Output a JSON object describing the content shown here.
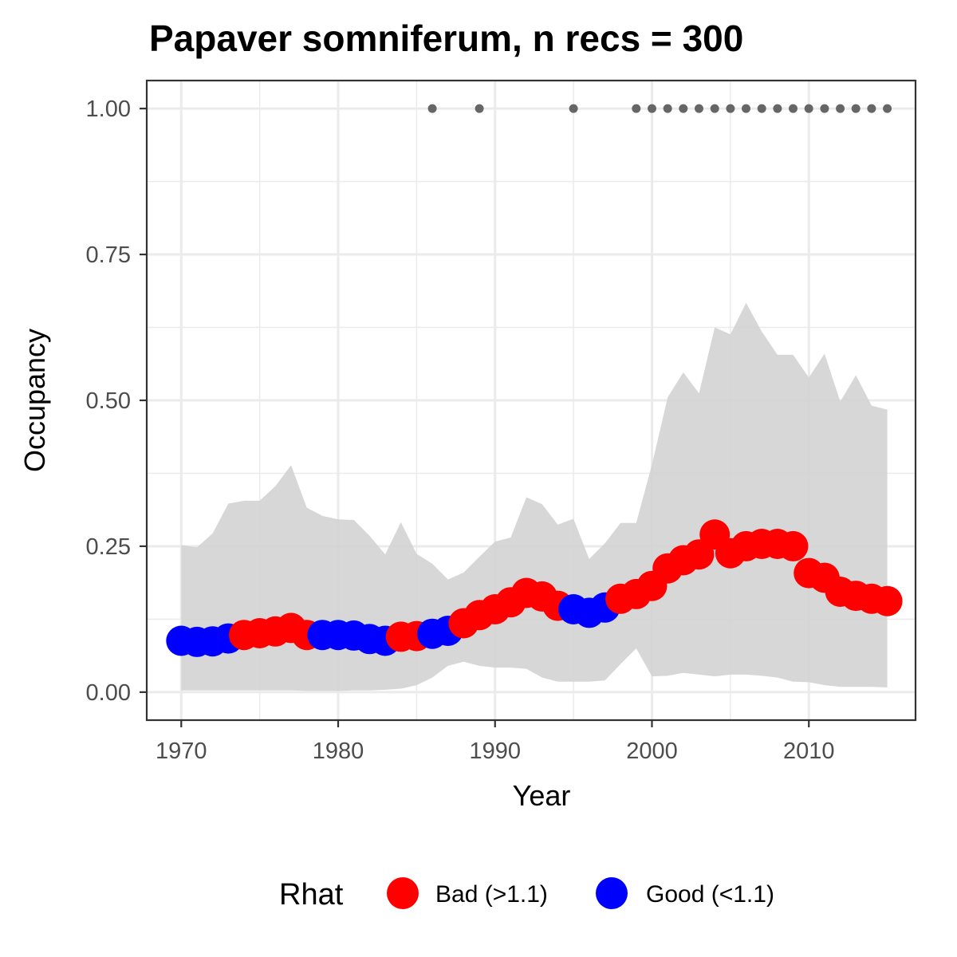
{
  "chart_data": {
    "type": "line",
    "title": "Papaver somniferum, n recs = 300",
    "xlabel": "Year",
    "ylabel": "Occupancy",
    "xlim": [
      1967.8,
      2016.8
    ],
    "ylim": [
      -0.048,
      1.048
    ],
    "x_ticks": [
      1970,
      1980,
      1990,
      2000,
      2010
    ],
    "x_tick_labels": [
      "1970",
      "1980",
      "1990",
      "2000",
      "2010"
    ],
    "y_ticks": [
      0,
      0.25,
      0.5,
      0.75,
      1.0
    ],
    "y_tick_labels": [
      "0.00",
      "0.25",
      "0.50",
      "0.75",
      "1.00"
    ],
    "grid": true,
    "legend_position": "bottom",
    "colors": {
      "Bad": "#ff0000",
      "Good": "#0000ff",
      "ribbon": "#d3d3d3",
      "detections": "#666666"
    },
    "legend": {
      "title": "Rhat",
      "items": [
        {
          "key": "Bad",
          "label": "Bad (>1.1)",
          "color": "#ff0000"
        },
        {
          "key": "Good",
          "label": "Good (<1.1)",
          "color": "#0000ff"
        }
      ]
    },
    "years": [
      1970,
      1971,
      1972,
      1973,
      1974,
      1975,
      1976,
      1977,
      1978,
      1979,
      1980,
      1981,
      1982,
      1983,
      1984,
      1985,
      1986,
      1987,
      1988,
      1989,
      1990,
      1991,
      1992,
      1993,
      1994,
      1995,
      1996,
      1997,
      1998,
      1999,
      2000,
      2001,
      2002,
      2003,
      2004,
      2005,
      2006,
      2007,
      2008,
      2009,
      2010,
      2011,
      2012,
      2013,
      2014,
      2015
    ],
    "occupancy": [
      0.088,
      0.086,
      0.087,
      0.092,
      0.098,
      0.101,
      0.104,
      0.11,
      0.098,
      0.098,
      0.098,
      0.097,
      0.091,
      0.088,
      0.095,
      0.096,
      0.1,
      0.105,
      0.118,
      0.132,
      0.142,
      0.154,
      0.17,
      0.164,
      0.148,
      0.142,
      0.136,
      0.145,
      0.16,
      0.168,
      0.182,
      0.212,
      0.226,
      0.236,
      0.27,
      0.238,
      0.25,
      0.254,
      0.254,
      0.25,
      0.204,
      0.196,
      0.172,
      0.165,
      0.16,
      0.156
    ],
    "rhat": [
      "Good",
      "Good",
      "Good",
      "Good",
      "Bad",
      "Bad",
      "Bad",
      "Bad",
      "Bad",
      "Good",
      "Good",
      "Good",
      "Good",
      "Good",
      "Bad",
      "Bad",
      "Good",
      "Good",
      "Bad",
      "Bad",
      "Bad",
      "Bad",
      "Bad",
      "Bad",
      "Bad",
      "Good",
      "Good",
      "Good",
      "Bad",
      "Bad",
      "Bad",
      "Bad",
      "Bad",
      "Bad",
      "Bad",
      "Bad",
      "Bad",
      "Bad",
      "Bad",
      "Bad",
      "Bad",
      "Bad",
      "Bad",
      "Bad",
      "Bad",
      "Bad"
    ],
    "ci_lower": [
      0.003,
      0.003,
      0.003,
      0.003,
      0.003,
      0.003,
      0.003,
      0.003,
      0.002,
      0.002,
      0.002,
      0.003,
      0.003,
      0.004,
      0.006,
      0.012,
      0.025,
      0.045,
      0.052,
      0.045,
      0.042,
      0.042,
      0.04,
      0.025,
      0.018,
      0.018,
      0.018,
      0.02,
      0.048,
      0.075,
      0.027,
      0.028,
      0.033,
      0.03,
      0.027,
      0.03,
      0.03,
      0.028,
      0.025,
      0.018,
      0.017,
      0.012,
      0.009,
      0.009,
      0.009,
      0.008
    ],
    "ci_upper": [
      0.252,
      0.248,
      0.272,
      0.323,
      0.328,
      0.328,
      0.353,
      0.389,
      0.316,
      0.302,
      0.296,
      0.295,
      0.268,
      0.236,
      0.291,
      0.237,
      0.22,
      0.193,
      0.205,
      0.232,
      0.258,
      0.265,
      0.334,
      0.322,
      0.287,
      0.297,
      0.228,
      0.255,
      0.29,
      0.29,
      0.39,
      0.505,
      0.548,
      0.512,
      0.625,
      0.613,
      0.667,
      0.618,
      0.578,
      0.578,
      0.539,
      0.58,
      0.498,
      0.543,
      0.491,
      0.484
    ],
    "detection_years": [
      1986,
      1989,
      1995,
      1999,
      2000,
      2001,
      2002,
      2003,
      2004,
      2005,
      2006,
      2007,
      2008,
      2009,
      2010,
      2011,
      2012,
      2013,
      2014,
      2015
    ],
    "detection_value": 1.0
  }
}
